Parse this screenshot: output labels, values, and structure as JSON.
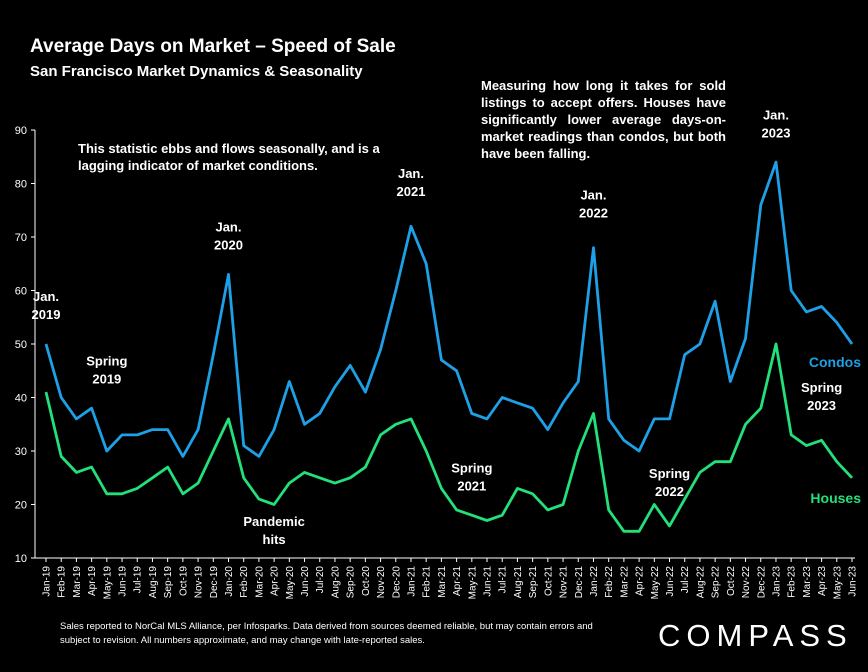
{
  "title": "Average Days on Market – Speed of Sale",
  "subtitle": "San Francisco Market Dynamics & Seasonality",
  "note_left": "This statistic ebbs and flows seasonally, and is a lagging indicator of market conditions.",
  "note_right": "Measuring how long it takes for sold listings to accept offers. Houses have significantly lower average days-on-market readings than condos, but both have been falling.",
  "footer": "Sales reported to NorCal MLS Alliance, per Infosparks. Data derived from sources deemed reliable, but may contain errors and subject to revision. All numbers approximate, and may change with late-reported sales.",
  "logo": "COMPASS",
  "colors": {
    "condos": "#1ea0e6",
    "houses": "#22e07a",
    "background": "#000000",
    "axis": "#ffffff"
  },
  "chart_data": {
    "type": "line",
    "ylim": [
      10,
      90
    ],
    "yticks": [
      10,
      20,
      30,
      40,
      50,
      60,
      70,
      80,
      90
    ],
    "grid": false,
    "categories": [
      "Jan-19",
      "Feb-19",
      "Mar-19",
      "Apr-19",
      "May-19",
      "Jun-19",
      "Jul-19",
      "Aug-19",
      "Sep-19",
      "Oct-19",
      "Nov-19",
      "Dec-19",
      "Jan-20",
      "Feb-20",
      "Mar-20",
      "Apr-20",
      "May-20",
      "Jun-20",
      "Jul-20",
      "Aug-20",
      "Sep-20",
      "Oct-20",
      "Nov-20",
      "Dec-20",
      "Jan-21",
      "Feb-21",
      "Mar-21",
      "Apr-21",
      "May-21",
      "Jun-21",
      "Jul-21",
      "Aug-21",
      "Sep-21",
      "Oct-21",
      "Nov-21",
      "Dec-21",
      "Jan-22",
      "Feb-22",
      "Mar-22",
      "Apr-22",
      "May-22",
      "Jun-22",
      "Jul-22",
      "Aug-22",
      "Sep-22",
      "Oct-22",
      "Nov-22",
      "Dec-22",
      "Jan-23",
      "Feb-23",
      "Mar-23",
      "Apr-23",
      "May-23",
      "Jun-23"
    ],
    "series": [
      {
        "name": "Condos",
        "color": "#1ea0e6",
        "values": [
          50,
          40,
          36,
          38,
          30,
          33,
          33,
          34,
          34,
          29,
          34,
          48,
          63,
          31,
          29,
          34,
          43,
          35,
          37,
          42,
          46,
          41,
          49,
          60,
          72,
          65,
          47,
          45,
          37,
          36,
          40,
          39,
          38,
          34,
          39,
          43,
          68,
          36,
          32,
          30,
          36,
          36,
          48,
          50,
          58,
          43,
          51,
          76,
          84,
          60,
          56,
          57,
          54,
          50
        ]
      },
      {
        "name": "Houses",
        "color": "#22e07a",
        "values": [
          41,
          29,
          26,
          27,
          22,
          22,
          23,
          25,
          27,
          22,
          24,
          30,
          36,
          25,
          21,
          20,
          24,
          26,
          25,
          24,
          25,
          27,
          33,
          35,
          36,
          30,
          23,
          19,
          18,
          17,
          18,
          23,
          22,
          19,
          20,
          30,
          37,
          19,
          15,
          15,
          20,
          16,
          21,
          26,
          28,
          28,
          35,
          38,
          50,
          33,
          31,
          32,
          28,
          25
        ]
      }
    ],
    "annotations": [
      {
        "lines": [
          "Jan.",
          "2019"
        ],
        "index": 0,
        "value": 58
      },
      {
        "lines": [
          "Spring",
          "2019"
        ],
        "index": 4,
        "value": 46
      },
      {
        "lines": [
          "Jan.",
          "2020"
        ],
        "index": 12,
        "value": 71
      },
      {
        "lines": [
          "Pandemic",
          "hits"
        ],
        "index": 15,
        "value": 16
      },
      {
        "lines": [
          "Jan.",
          "2021"
        ],
        "index": 24,
        "value": 81
      },
      {
        "lines": [
          "Spring",
          "2021"
        ],
        "index": 28,
        "value": 26
      },
      {
        "lines": [
          "Jan.",
          "2022"
        ],
        "index": 36,
        "value": 77
      },
      {
        "lines": [
          "Spring",
          "2022"
        ],
        "index": 41,
        "value": 25
      },
      {
        "lines": [
          "Jan.",
          "2023"
        ],
        "index": 48,
        "value": 92
      },
      {
        "lines": [
          "Spring",
          "2023"
        ],
        "index": 51,
        "value": 41
      }
    ]
  }
}
